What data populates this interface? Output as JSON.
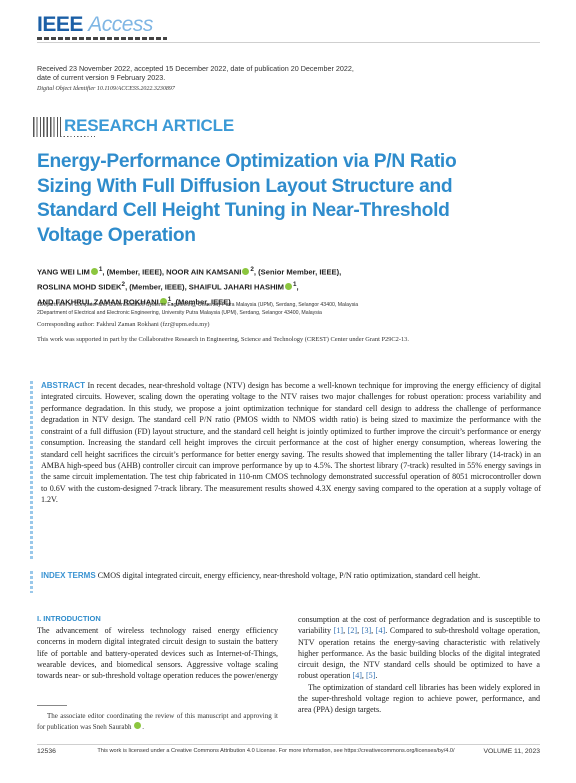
{
  "journal": {
    "logo_ieee": "IEEE",
    "logo_access": "Access"
  },
  "dates": "Received 23 November 2022, accepted 15 December 2022, date of publication 20 December 2022, date of current version 9 February 2023.",
  "doi": "Digital Object Identifier 10.1109/ACCESS.2022.3230897",
  "article_type": "RESEARCH ARTICLE",
  "title": "Energy-Performance Optimization via P/N Ratio Sizing With Full Diffusion Layout Structure and Standard Cell Height Tuning in Near-Threshold Voltage Operation",
  "authors": {
    "line1_a": "YANG WEI LIM",
    "line1_b": "1",
    "line1_c": ", (Member, IEEE), NOOR AIN KAMSANI",
    "line1_d": "2",
    "line1_e": ", (Senior Member, IEEE),",
    "line2_a": "ROSLINA MOHD SIDEK",
    "line2_b": "2",
    "line2_c": ", (Member, IEEE), SHAIFUL JAHARI HASHIM",
    "line2_d": "1",
    "line2_e": ",",
    "line3_a": "AND FAKHRUL ZAMAN ROKHANI",
    "line3_b": "1",
    "line3_c": ", (Member, IEEE)"
  },
  "affiliations": [
    "1Department of Computer and Communication Systems Engineering, University Putra Malaysia (UPM), Serdang, Selangor 43400, Malaysia",
    "2Department of Electrical and Electronic Engineering, University Putra Malaysia (UPM), Serdang, Selangor 43400, Malaysia"
  ],
  "corresponding": "Corresponding author: Fakhrul Zaman Rokhani (fzr@upm.edu.my)",
  "funding": "This work was supported in part by the Collaborative Research in Engineering, Science and Technology (CREST) Center under Grant P29C2-13.",
  "abstract": {
    "heading": "ABSTRACT",
    "text": "In recent decades, near-threshold voltage (NTV) design has become a well-known technique for improving the energy efficiency of digital integrated circuits. However, scaling down the operating voltage to the NTV raises two major challenges for robust operation: process variability and performance degradation. In this study, we propose a joint optimization technique for standard cell design to address the challenge of performance degradation in NTV design. The standard cell P/N ratio (PMOS width to NMOS width ratio) is being sized to maximize the performance with the constraint of a full diffusion (FD) layout structure, and the standard cell height is jointly optimized to further improve the circuit’s performance or energy consumption. Increasing the standard cell height improves the circuit performance at the cost of higher energy consumption, whereas lowering the standard cell height sacrifices the circuit’s performance for better energy saving. The results showed that implementing the taller library (14-track) in an AMBA high-speed bus (AHB) controller circuit can improve performance by up to 4.5%. The shortest library (7-track) resulted in 55% energy savings in the same circuit implementation. The test chip fabricated in 110-nm CMOS technology demonstrated successful operation of 8051 microcontroller down to 0.6V with the custom-designed 7-track library. The measurement results showed 4.3X energy saving compared to the operation at a supply voltage of 1.2V."
  },
  "index_terms": {
    "heading": "INDEX TERMS",
    "text": "CMOS digital integrated circuit, energy efficiency, near-threshold voltage, P/N ratio optimization, standard cell height."
  },
  "introduction": {
    "heading": "I. INTRODUCTION",
    "left_text": "The advancement of wireless technology raised energy efficiency concerns in modern digital integrated circuit design to sustain the battery life of portable and battery-operated devices such as Internet-of-Things, wearable devices, and biomedical sensors. Aggressive voltage scaling towards near- or sub-threshold voltage operation reduces the power/energy",
    "right_p1_a": "consumption at the cost of performance degradation and is susceptible to variability ",
    "right_p1_ref1": "[1]",
    "right_p1_sep1": ", ",
    "right_p1_ref2": "[2]",
    "right_p1_sep2": ", ",
    "right_p1_ref3": "[3]",
    "right_p1_sep3": ", ",
    "right_p1_ref4": "[4]",
    "right_p1_b": ". Compared to sub-threshold voltage operation, NTV operation retains the energy-saving characteristic with relatively higher performance. As the basic building blocks of the digital integrated circuit design, the NTV standard cells should be optimized to have a robust operation ",
    "right_p1_ref5": "[4]",
    "right_p1_sep4": ", ",
    "right_p1_ref6": "[5]",
    "right_p1_c": ".",
    "right_p2": "The optimization of standard cell libraries has been widely explored in the super-threshold voltage region to achieve power, performance, and area (PPA) design targets."
  },
  "footnote": "The associate editor coordinating the review of this manuscript and approving it for publication was Sneh Saurabh",
  "footer": {
    "page": "12536",
    "license": "This work is licensed under a Creative Commons Attribution 4.0 License. For more information, see https://creativecommons.org/licenses/by/4.0/",
    "volume": "VOLUME 11, 2023"
  },
  "colors": {
    "accent": "#2f8ccc",
    "banner": "#3c9ad6",
    "orcid": "#8cc63f",
    "logo_blue": "#1b5fa6"
  }
}
